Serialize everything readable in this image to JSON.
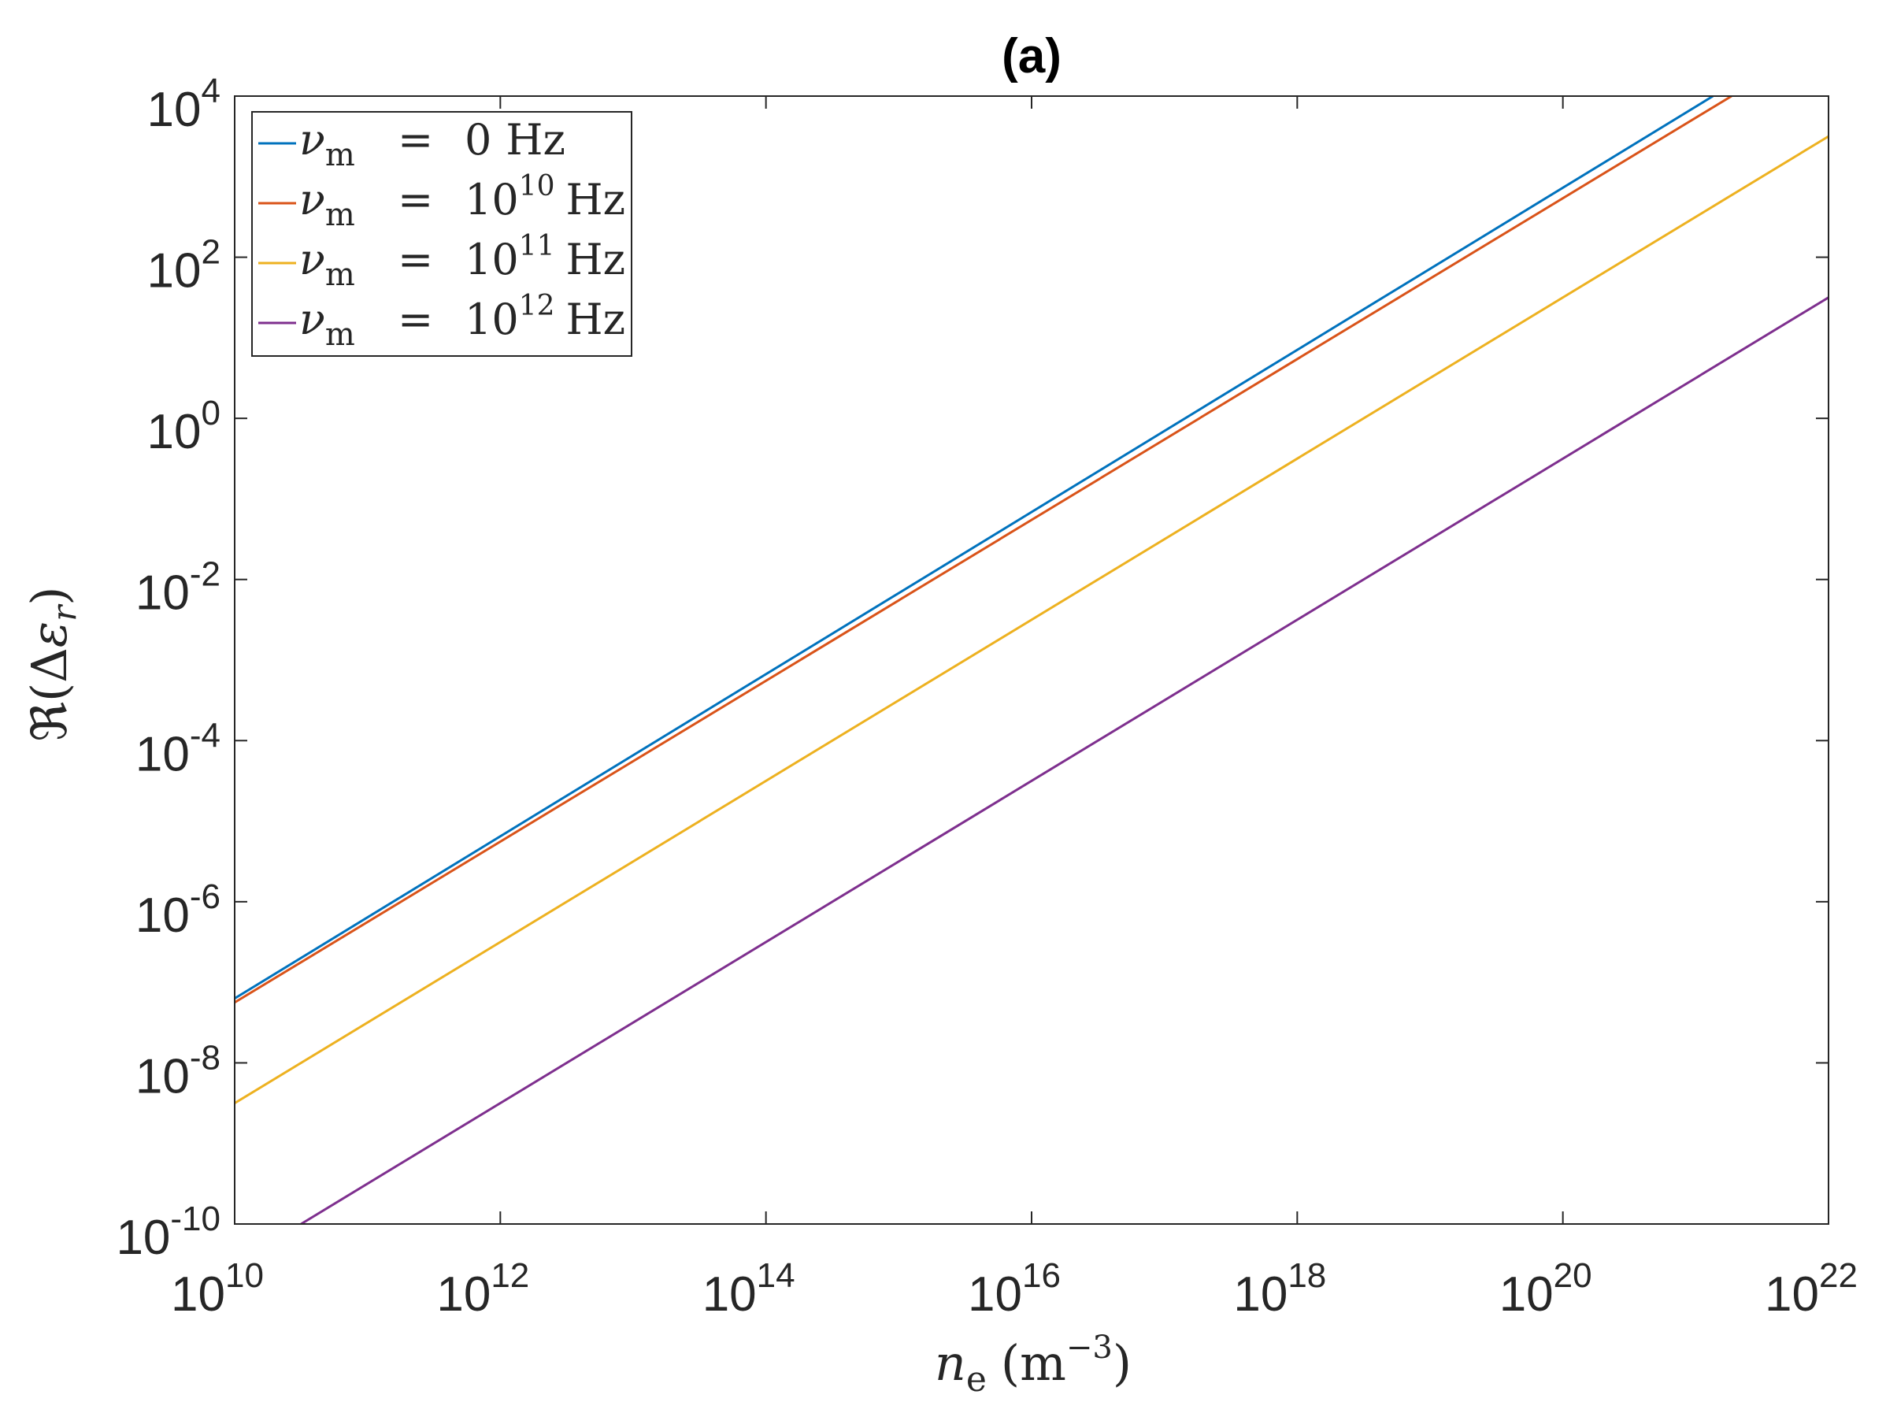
{
  "chart_data": {
    "type": "line",
    "title": "(a)",
    "xscale": "log",
    "yscale": "log",
    "xlabel": {
      "main": "n",
      "sub": "e",
      "unit_open": "(m",
      "unit_exp": "−3",
      "unit_close": ")"
    },
    "ylabel": {
      "prefix": "ℜ(Δ",
      "symbol": "ε",
      "sub": "r",
      "suffix": ")"
    },
    "xlim_exp": [
      10,
      22
    ],
    "ylim_exp": [
      -10,
      4
    ],
    "xticks": [
      {
        "base": "10",
        "exp": "10"
      },
      {
        "base": "10",
        "exp": "12"
      },
      {
        "base": "10",
        "exp": "14"
      },
      {
        "base": "10",
        "exp": "16"
      },
      {
        "base": "10",
        "exp": "18"
      },
      {
        "base": "10",
        "exp": "20"
      },
      {
        "base": "10",
        "exp": "22"
      }
    ],
    "yticks": [
      {
        "base": "10",
        "exp": "4"
      },
      {
        "base": "10",
        "exp": "2"
      },
      {
        "base": "10",
        "exp": "0"
      },
      {
        "base": "10",
        "exp": "-2"
      },
      {
        "base": "10",
        "exp": "-4"
      },
      {
        "base": "10",
        "exp": "-6"
      },
      {
        "base": "10",
        "exp": "-8"
      },
      {
        "base": "10",
        "exp": "-10"
      }
    ],
    "legend_position": "top-left",
    "series": [
      {
        "name": "nu_m = 0 Hz",
        "label_sym": "ν",
        "label_sub": "m",
        "label_eq": "=",
        "label_val": "0",
        "label_exp": "",
        "label_unit": "Hz",
        "color": "#0072BD",
        "x_log10": [
          10,
          21.13
        ],
        "y_log10": [
          -7.2,
          4.0
        ]
      },
      {
        "name": "nu_m = 10^10 Hz",
        "label_sym": "ν",
        "label_sub": "m",
        "label_eq": "=",
        "label_val": "10",
        "label_exp": "10",
        "label_unit": "Hz",
        "color": "#D95319",
        "x_log10": [
          10,
          21.27
        ],
        "y_log10": [
          -7.25,
          4.0
        ]
      },
      {
        "name": "nu_m = 10^11 Hz",
        "label_sym": "ν",
        "label_sub": "m",
        "label_eq": "=",
        "label_val": "10",
        "label_exp": "11",
        "label_unit": "Hz",
        "color": "#EDB120",
        "x_log10": [
          10,
          22
        ],
        "y_log10": [
          -8.5,
          3.5
        ]
      },
      {
        "name": "nu_m = 10^12 Hz",
        "label_sym": "ν",
        "label_sub": "m",
        "label_eq": "=",
        "label_val": "10",
        "label_exp": "12",
        "label_unit": "Hz",
        "color": "#7E2F8E",
        "x_log10": [
          10.5,
          22
        ],
        "y_log10": [
          -10.0,
          1.5
        ]
      }
    ]
  }
}
